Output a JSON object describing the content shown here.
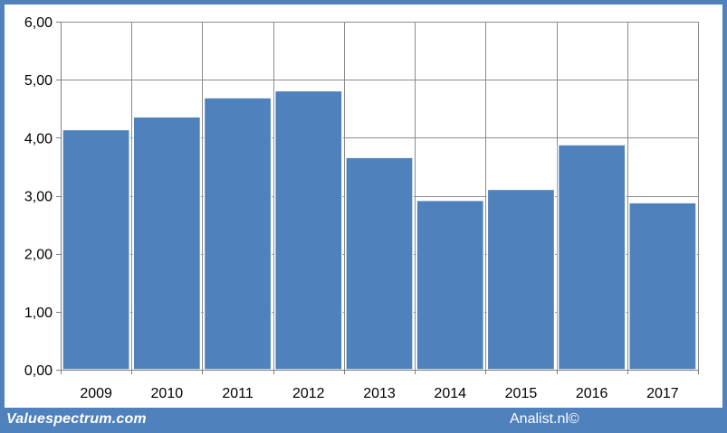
{
  "colors": {
    "bar": "#4f81bd",
    "bar_edge": "#ffffff",
    "frame": "#4f81bd",
    "grid": "#8c8c8c",
    "footer_text": "#ffffff"
  },
  "footer": {
    "left_label": "Valuespectrum.com",
    "right_label": "Analist.nl©"
  },
  "chart_data": {
    "type": "bar",
    "categories": [
      "2009",
      "2010",
      "2011",
      "2012",
      "2013",
      "2014",
      "2015",
      "2016",
      "2017"
    ],
    "values": [
      4.14,
      4.36,
      4.69,
      4.81,
      3.66,
      2.92,
      3.11,
      3.88,
      2.88
    ],
    "title": "",
    "xlabel": "",
    "ylabel": "",
    "ylim": [
      0,
      6
    ],
    "yticks": [
      "0,00",
      "1,00",
      "2,00",
      "3,00",
      "4,00",
      "5,00",
      "6,00"
    ],
    "grid": true,
    "legend": "none"
  }
}
